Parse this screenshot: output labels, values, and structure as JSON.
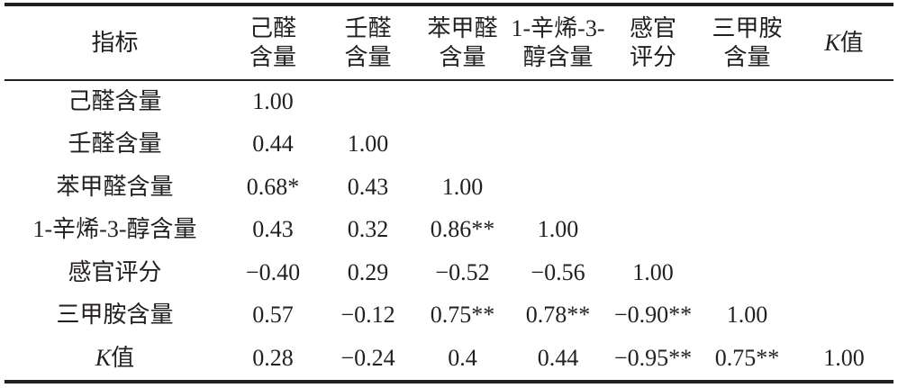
{
  "chart_data": {
    "type": "table",
    "columns": [
      {
        "lines": [
          "指标"
        ]
      },
      {
        "lines": [
          "己醛",
          "含量"
        ]
      },
      {
        "lines": [
          "壬醛",
          "含量"
        ]
      },
      {
        "lines": [
          "苯甲醛",
          "含量"
        ]
      },
      {
        "lines": [
          "1-辛烯-3-",
          "醇含量"
        ]
      },
      {
        "lines": [
          "感官",
          "评分"
        ]
      },
      {
        "lines": [
          "三甲胺",
          "含量"
        ]
      },
      {
        "italic_prefix": "K",
        "lines": [
          "值"
        ]
      }
    ],
    "rows": [
      {
        "label": "己醛含量",
        "values": [
          "1.00"
        ]
      },
      {
        "label": "壬醛含量",
        "values": [
          "0.44",
          "1.00"
        ]
      },
      {
        "label": "苯甲醛含量",
        "values": [
          "0.68*",
          "0.43",
          "1.00"
        ]
      },
      {
        "label": "1-辛烯-3-醇含量",
        "values": [
          "0.43",
          "0.32",
          "0.86**",
          "1.00"
        ]
      },
      {
        "label": "感官评分",
        "values": [
          "−0.40",
          "0.29",
          "−0.52",
          "−0.56",
          "1.00"
        ]
      },
      {
        "label": "三甲胺含量",
        "values": [
          "0.57",
          "−0.12",
          "0.75**",
          "0.78**",
          "−0.90**",
          "1.00"
        ]
      },
      {
        "italic_prefix": "K",
        "label": "值",
        "values": [
          "0.28",
          "−0.24",
          "0.4",
          "0.44",
          "−0.95**",
          "0.75**",
          "1.00"
        ]
      }
    ]
  }
}
